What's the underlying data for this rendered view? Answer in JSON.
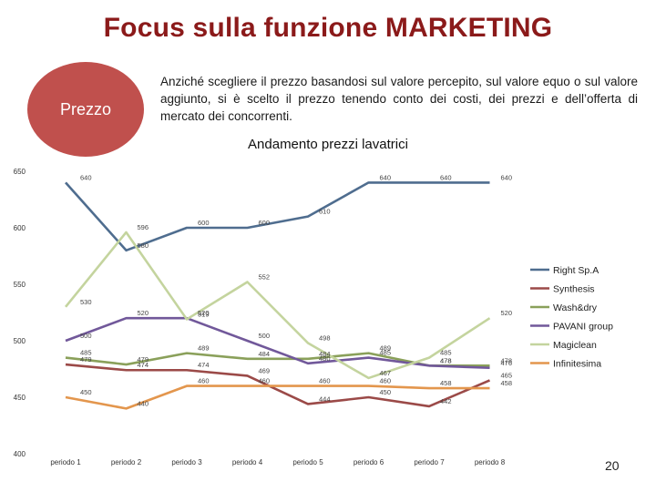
{
  "slide": {
    "title": "Focus sulla funzione MARKETING",
    "circle_label": "Prezzo",
    "intro": "Anziché scegliere il prezzo basandosi sul valore percepito, sul valore equo o sul valore aggiunto, si è scelto il prezzo tenendo conto dei costi, dei prezzi e dell’offerta di mercato dei concorrenti.",
    "page_number": "20"
  },
  "chart_data": {
    "type": "line",
    "title": "Andamento prezzi lavatrici",
    "categories": [
      "periodo 1",
      "periodo 2",
      "periodo 3",
      "periodo 4",
      "periodo 5",
      "periodo 6",
      "periodo 7",
      "periodo 8"
    ],
    "ylim": [
      400,
      650
    ],
    "yticks": [
      400,
      450,
      500,
      550,
      600,
      650
    ],
    "grid": false,
    "legend_position": "right",
    "series": [
      {
        "name": "Right Sp.A",
        "color": "#4f6d8f",
        "values": [
          640,
          580,
          600,
          600,
          610,
          640,
          640,
          640
        ],
        "labels": [
          "640",
          "580",
          "600",
          "600",
          "610",
          "640",
          "640",
          "640"
        ]
      },
      {
        "name": "Synthesis",
        "color": "#9b4a48",
        "values": [
          479,
          474,
          474,
          469,
          444,
          450,
          442,
          465
        ],
        "labels": [
          "479",
          "474",
          "474",
          "469",
          "444",
          "450",
          "442",
          "465"
        ]
      },
      {
        "name": "Wash&dry",
        "color": "#8aa05a",
        "values": [
          485,
          479,
          489,
          484,
          484,
          489,
          478,
          478
        ],
        "labels": [
          "485",
          "479",
          "489",
          "484",
          "484",
          "489",
          "478",
          "478"
        ]
      },
      {
        "name": "PAVANI group",
        "color": "#71589a",
        "values": [
          500,
          520,
          520,
          500,
          480,
          485,
          478,
          476
        ],
        "labels": [
          "500",
          "520",
          "520",
          "500",
          "480",
          "485",
          "478",
          "476"
        ]
      },
      {
        "name": "Magiclean",
        "color": "#c4d49e",
        "values": [
          530,
          596,
          519,
          552,
          498,
          467,
          485,
          520
        ],
        "labels": [
          "530",
          "596",
          "519",
          "552",
          "498",
          "467",
          "485",
          "520"
        ]
      },
      {
        "name": "Infinitesima",
        "color": "#e3964d",
        "values": [
          450,
          440,
          460,
          460,
          460,
          460,
          458,
          458
        ],
        "labels": [
          "450",
          "440",
          "460",
          "460",
          "460",
          "460",
          "458",
          "458"
        ]
      }
    ]
  }
}
